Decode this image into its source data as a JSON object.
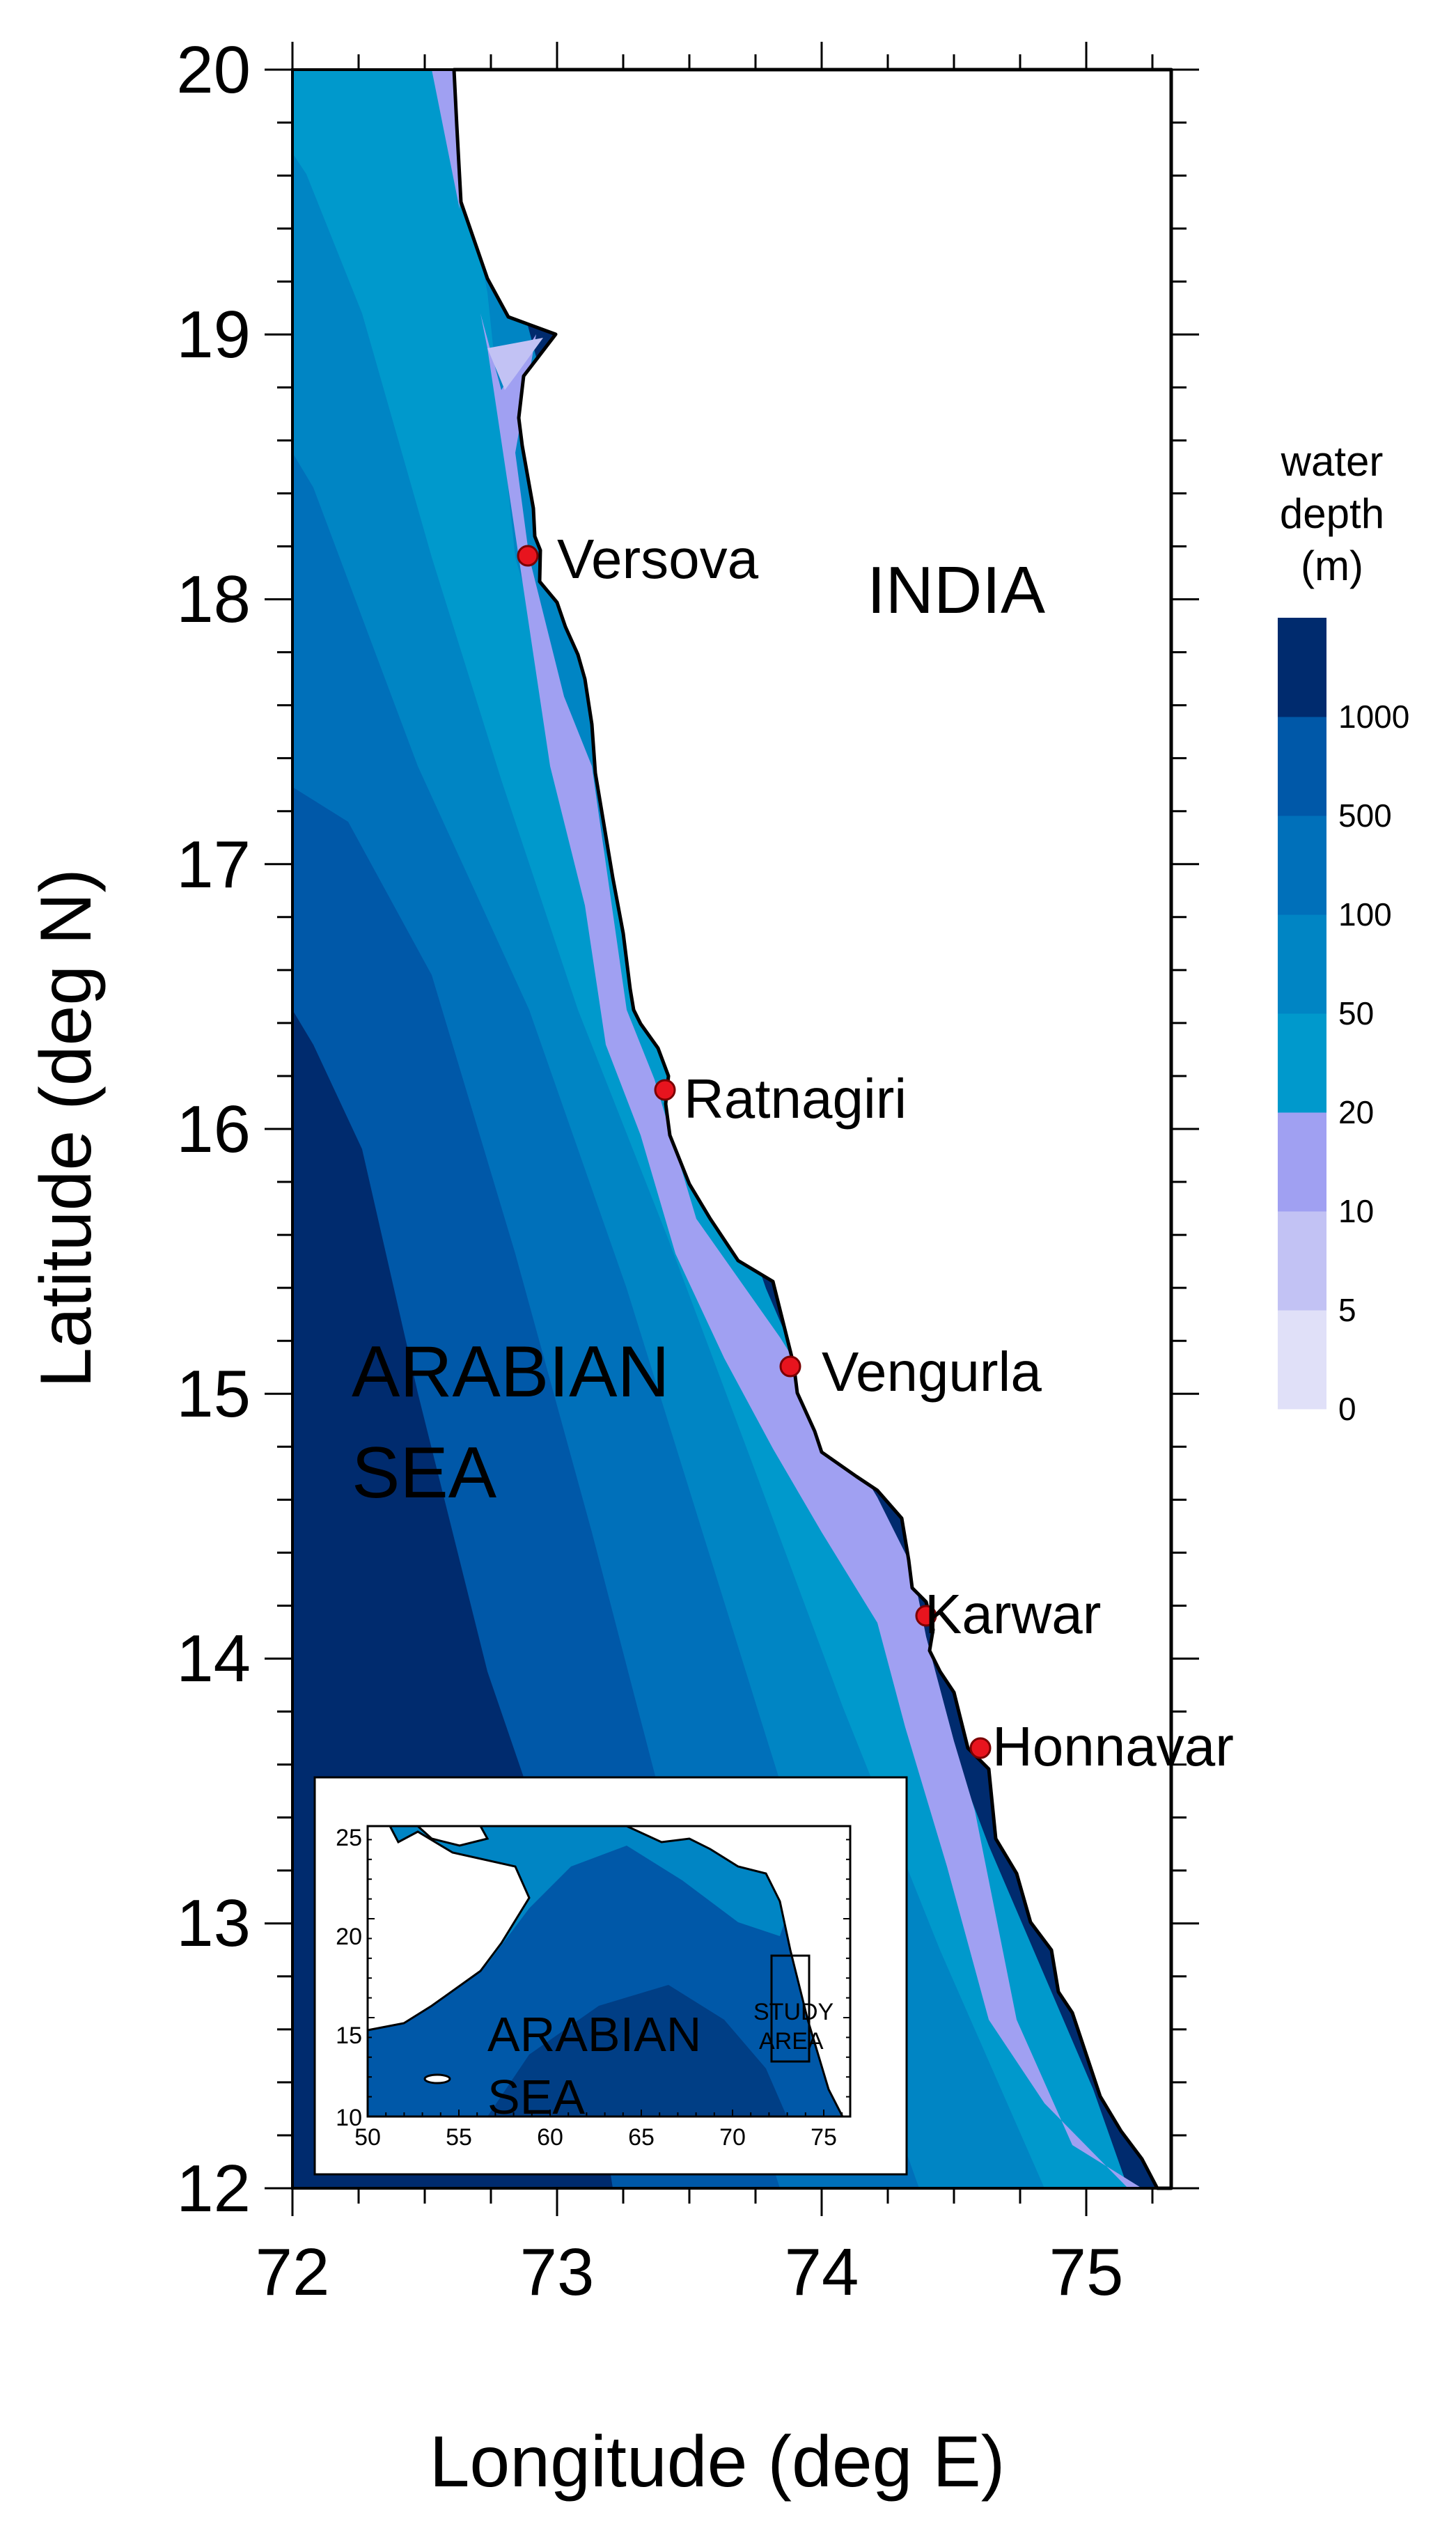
{
  "axes": {
    "xlabel": "Longitude (deg E)",
    "ylabel": "Latitude (deg N)",
    "x_ticks": [
      "72",
      "73",
      "74",
      "75"
    ],
    "y_ticks": [
      "20",
      "19",
      "18",
      "17",
      "16",
      "15",
      "14",
      "13",
      "12"
    ],
    "xlim": [
      72,
      75.3
    ],
    "ylim": [
      12,
      20
    ]
  },
  "labels": {
    "land": "INDIA",
    "sea_line1": "ARABIAN",
    "sea_line2": "SEA"
  },
  "locations": [
    {
      "name": "Versova",
      "lon": 72.9,
      "lat": 18.17
    },
    {
      "name": "Ratnagiri",
      "lon": 73.42,
      "lat": 16.15
    },
    {
      "name": "Vengurla",
      "lon": 73.88,
      "lat": 15.1
    },
    {
      "name": "Karwar",
      "lon": 74.4,
      "lat": 14.16
    },
    {
      "name": "Honnavar",
      "lon": 74.6,
      "lat": 13.66
    }
  ],
  "legend": {
    "title_line1": "water",
    "title_line2": "depth",
    "title_line3": "(m)",
    "levels": [
      "0",
      "5",
      "10",
      "20",
      "50",
      "100",
      "500",
      "1000"
    ],
    "colors": [
      "#e0e0f8",
      "#c2c2f4",
      "#a0a0f2",
      "#0099cc",
      "#0085c4",
      "#0070ba",
      "#0058a8",
      "#002b6e"
    ]
  },
  "inset": {
    "x_ticks": [
      "50",
      "55",
      "60",
      "65",
      "70",
      "75"
    ],
    "y_ticks": [
      "25",
      "20",
      "15",
      "10"
    ],
    "sea_line1": "ARABIAN",
    "sea_line2": "SEA",
    "study_line1": "STUDY",
    "study_line2": "AREA"
  },
  "colors": {
    "land": "#ffffff",
    "coast": "#000000",
    "marker": "#e8141e"
  }
}
